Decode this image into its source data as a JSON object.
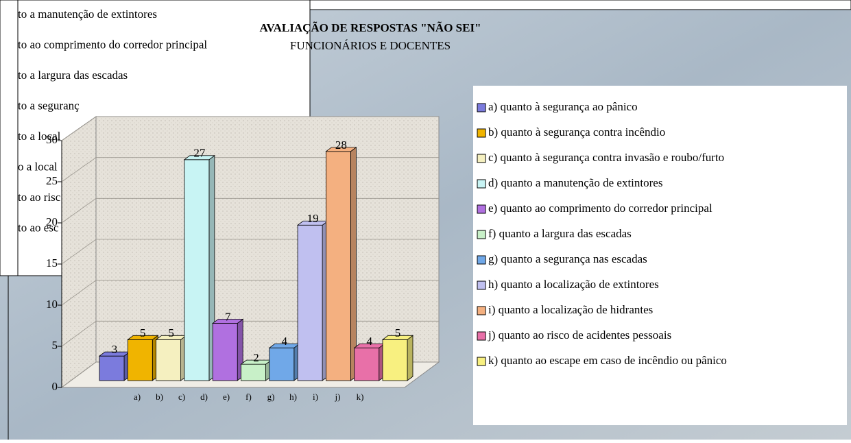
{
  "background_list": [
    "to a manutenção de extintores",
    "to ao comprimento do corredor principal",
    "to a largura das escadas",
    "to a seguranç",
    "to a local",
    "o a local",
    "to ao risc",
    "to ao esc"
  ],
  "chart_data": {
    "type": "bar",
    "title": "AVALIAÇÃO DE RESPOSTAS \"NÃO SEI\"",
    "subtitle": "FUNCIONÁRIOS E DOCENTES",
    "categories": [
      "a)",
      "b)",
      "c)",
      "d)",
      "e)",
      "f)",
      "g)",
      "h)",
      "i)",
      "j)",
      "k)"
    ],
    "legend": [
      "a) quanto à segurança ao pânico",
      "b) quanto à segurança contra incêndio",
      "c) quanto à segurança contra invasão e roubo/furto",
      "d) quanto a manutenção de extintores",
      "e) quanto ao comprimento do corredor principal",
      "f)  quanto a largura das escadas",
      "g) quanto a segurança nas escadas",
      "h) quanto a localização de extintores",
      "i) quanto a localização de hidrantes",
      "j)  quanto ao risco de acidentes pessoais",
      "k) quanto ao escape em caso de incêndio ou pânico"
    ],
    "values": [
      3,
      5,
      5,
      27,
      7,
      2,
      4,
      19,
      28,
      4,
      5
    ],
    "colors": [
      "#7b7bdd",
      "#f0b400",
      "#f5f0c0",
      "#c8f4f4",
      "#b070e0",
      "#c8f0c8",
      "#70a8e8",
      "#c0c0f0",
      "#f4b080",
      "#e870a8",
      "#f8f080"
    ],
    "ylim": [
      0,
      30
    ],
    "yticks": [
      0,
      5,
      10,
      15,
      20,
      25,
      30
    ],
    "grid": true
  }
}
